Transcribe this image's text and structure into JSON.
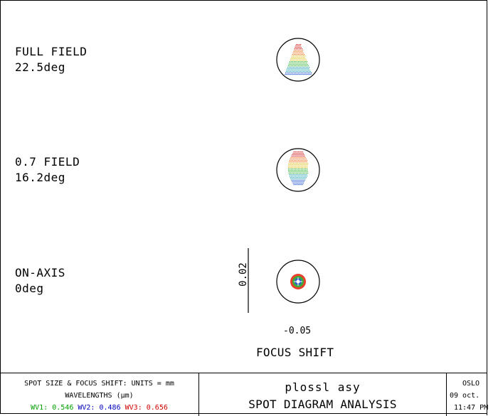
{
  "fields": [
    {
      "label": "FULL FIELD",
      "angle": "22.5deg"
    },
    {
      "label": "0.7 FIELD",
      "angle": "16.2deg"
    },
    {
      "label": "ON-AXIS",
      "angle": "0deg"
    }
  ],
  "scale_bar": "0.02",
  "focus_value": "-0.05",
  "focus_title": "FOCUS SHIFT",
  "footer": {
    "units": "SPOT SIZE & FOCUS SHIFT: UNITS = mm",
    "wavelengths_label": "WAVELENGTHS (μm)",
    "wavelengths": [
      {
        "name": "WV1:",
        "value": "0.546",
        "color": "#00a000"
      },
      {
        "name": "WV2:",
        "value": "0.486",
        "color": "#0000c0"
      },
      {
        "name": "WV3:",
        "value": "0.656",
        "color": "#d00000"
      }
    ],
    "lens_name": "plossl asy",
    "analysis_title": "SPOT DIAGRAM ANALYSIS",
    "program": "OSLO",
    "date": "09 oct.",
    "time": "11:47 PM"
  }
}
